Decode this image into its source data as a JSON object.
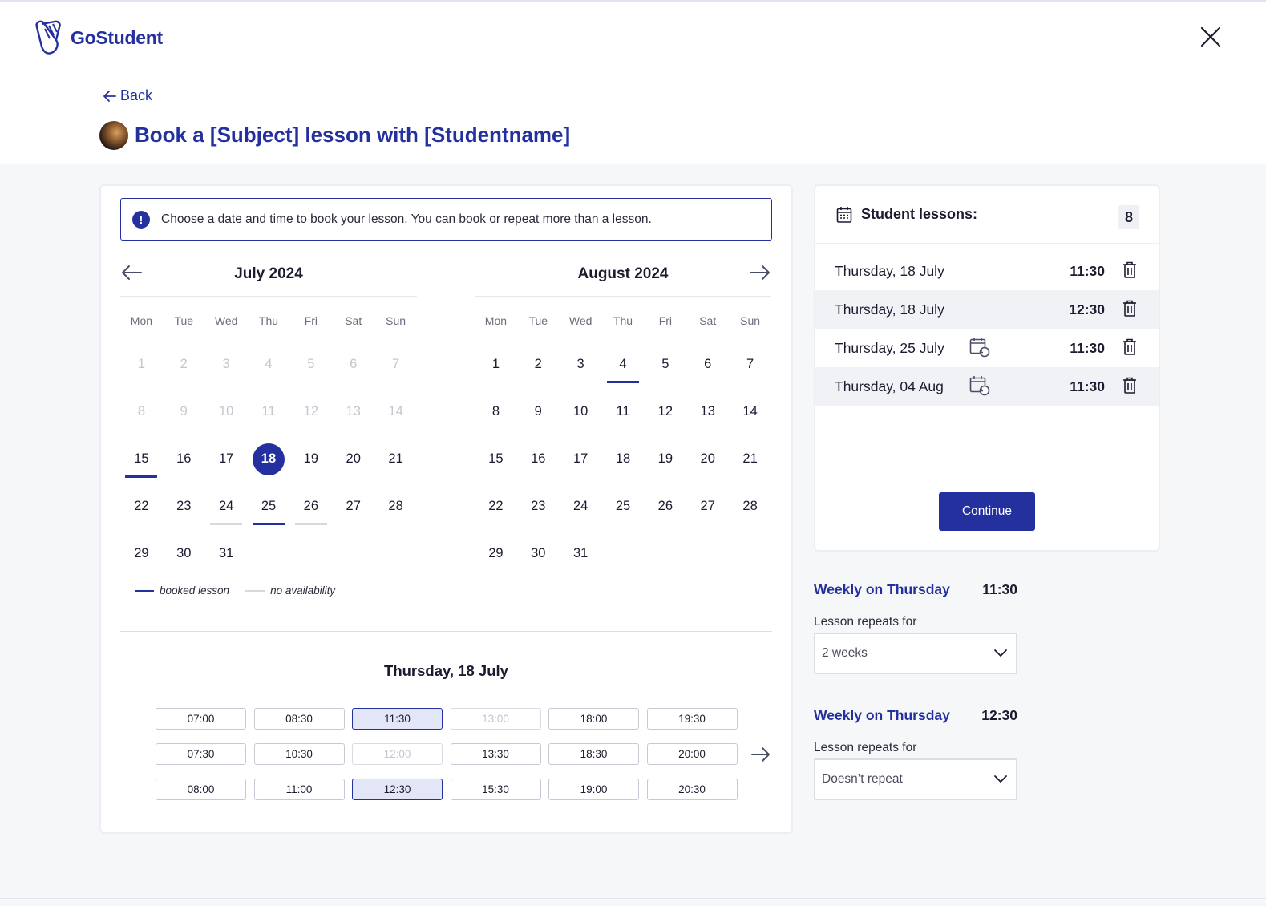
{
  "header": {
    "logo_text": "GoStudent"
  },
  "titlebar": {
    "back_label": "Back",
    "title": "Book a [Subject] lesson with [Studentname]"
  },
  "info": {
    "text": "Choose a date and time to book your lesson. You can book or repeat more than a lesson."
  },
  "calendar": {
    "weekdays": [
      "Mon",
      "Tue",
      "Wed",
      "Thu",
      "Fri",
      "Sat",
      "Sun"
    ],
    "months": [
      {
        "title": "July  2024",
        "days": [
          {
            "d": "1",
            "state": "disabled"
          },
          {
            "d": "2",
            "state": "disabled"
          },
          {
            "d": "3",
            "state": "disabled"
          },
          {
            "d": "4",
            "state": "disabled"
          },
          {
            "d": "5",
            "state": "disabled"
          },
          {
            "d": "6",
            "state": "disabled"
          },
          {
            "d": "7",
            "state": "disabled"
          },
          {
            "d": "8",
            "state": "disabled"
          },
          {
            "d": "9",
            "state": "disabled"
          },
          {
            "d": "10",
            "state": "disabled"
          },
          {
            "d": "11",
            "state": "disabled"
          },
          {
            "d": "12",
            "state": "disabled"
          },
          {
            "d": "13",
            "state": "disabled"
          },
          {
            "d": "14",
            "state": "disabled"
          },
          {
            "d": "15",
            "state": "booked"
          },
          {
            "d": "16",
            "state": ""
          },
          {
            "d": "17",
            "state": ""
          },
          {
            "d": "18",
            "state": "selected"
          },
          {
            "d": "19",
            "state": ""
          },
          {
            "d": "20",
            "state": ""
          },
          {
            "d": "21",
            "state": ""
          },
          {
            "d": "22",
            "state": ""
          },
          {
            "d": "23",
            "state": ""
          },
          {
            "d": "24",
            "state": "noavail"
          },
          {
            "d": "25",
            "state": "booked"
          },
          {
            "d": "26",
            "state": "noavail"
          },
          {
            "d": "27",
            "state": ""
          },
          {
            "d": "28",
            "state": ""
          },
          {
            "d": "29",
            "state": ""
          },
          {
            "d": "30",
            "state": ""
          },
          {
            "d": "31",
            "state": ""
          }
        ]
      },
      {
        "title": "August  2024",
        "days": [
          {
            "d": "1",
            "state": ""
          },
          {
            "d": "2",
            "state": ""
          },
          {
            "d": "3",
            "state": ""
          },
          {
            "d": "4",
            "state": "booked"
          },
          {
            "d": "5",
            "state": ""
          },
          {
            "d": "6",
            "state": ""
          },
          {
            "d": "7",
            "state": ""
          },
          {
            "d": "8",
            "state": ""
          },
          {
            "d": "9",
            "state": ""
          },
          {
            "d": "10",
            "state": ""
          },
          {
            "d": "11",
            "state": ""
          },
          {
            "d": "12",
            "state": ""
          },
          {
            "d": "13",
            "state": ""
          },
          {
            "d": "14",
            "state": ""
          },
          {
            "d": "15",
            "state": ""
          },
          {
            "d": "16",
            "state": ""
          },
          {
            "d": "17",
            "state": ""
          },
          {
            "d": "18",
            "state": ""
          },
          {
            "d": "19",
            "state": ""
          },
          {
            "d": "20",
            "state": ""
          },
          {
            "d": "21",
            "state": ""
          },
          {
            "d": "22",
            "state": ""
          },
          {
            "d": "23",
            "state": ""
          },
          {
            "d": "24",
            "state": ""
          },
          {
            "d": "25",
            "state": ""
          },
          {
            "d": "26",
            "state": ""
          },
          {
            "d": "27",
            "state": ""
          },
          {
            "d": "28",
            "state": ""
          },
          {
            "d": "29",
            "state": ""
          },
          {
            "d": "30",
            "state": ""
          },
          {
            "d": "31",
            "state": ""
          }
        ]
      }
    ],
    "legend": {
      "booked": "booked lesson",
      "noavail": "no availability"
    }
  },
  "timeslots": {
    "date_title": "Thursday, 18 July",
    "slots": [
      {
        "t": "07:00",
        "state": ""
      },
      {
        "t": "08:30",
        "state": ""
      },
      {
        "t": "11:30",
        "state": "sel"
      },
      {
        "t": "13:00",
        "state": "dis"
      },
      {
        "t": "18:00",
        "state": ""
      },
      {
        "t": "19:30",
        "state": ""
      },
      {
        "t": "07:30",
        "state": ""
      },
      {
        "t": "10:30",
        "state": ""
      },
      {
        "t": "12:00",
        "state": "dis"
      },
      {
        "t": "13:30",
        "state": ""
      },
      {
        "t": "18:30",
        "state": ""
      },
      {
        "t": "20:00",
        "state": ""
      },
      {
        "t": "08:00",
        "state": ""
      },
      {
        "t": "11:00",
        "state": ""
      },
      {
        "t": "12:30",
        "state": "sel"
      },
      {
        "t": "15:30",
        "state": ""
      },
      {
        "t": "19:00",
        "state": ""
      },
      {
        "t": "20:30",
        "state": ""
      }
    ]
  },
  "lessons": {
    "title": "Student lessons:",
    "count": "8",
    "items": [
      {
        "date": "Thursday, 18 July",
        "time": "11:30",
        "repeat": false
      },
      {
        "date": "Thursday, 18 July",
        "time": "12:30",
        "repeat": false
      },
      {
        "date": "Thursday, 25 July",
        "time": "11:30",
        "repeat": true
      },
      {
        "date": "Thursday, 04 Aug",
        "time": "11:30",
        "repeat": true
      }
    ],
    "continue_label": "Continue"
  },
  "repeats": [
    {
      "title": "Weekly on Thursday",
      "time": "11:30",
      "label": "Lesson repeats for",
      "value": "2 weeks"
    },
    {
      "title": "Weekly on Thursday",
      "time": "12:30",
      "label": "Lesson repeats for",
      "value": "Doesn’t repeat"
    }
  ],
  "colors": {
    "brand": "#24309e",
    "disabled": "#c4c6cf",
    "selected_slot_bg": "#e3e6f6"
  }
}
